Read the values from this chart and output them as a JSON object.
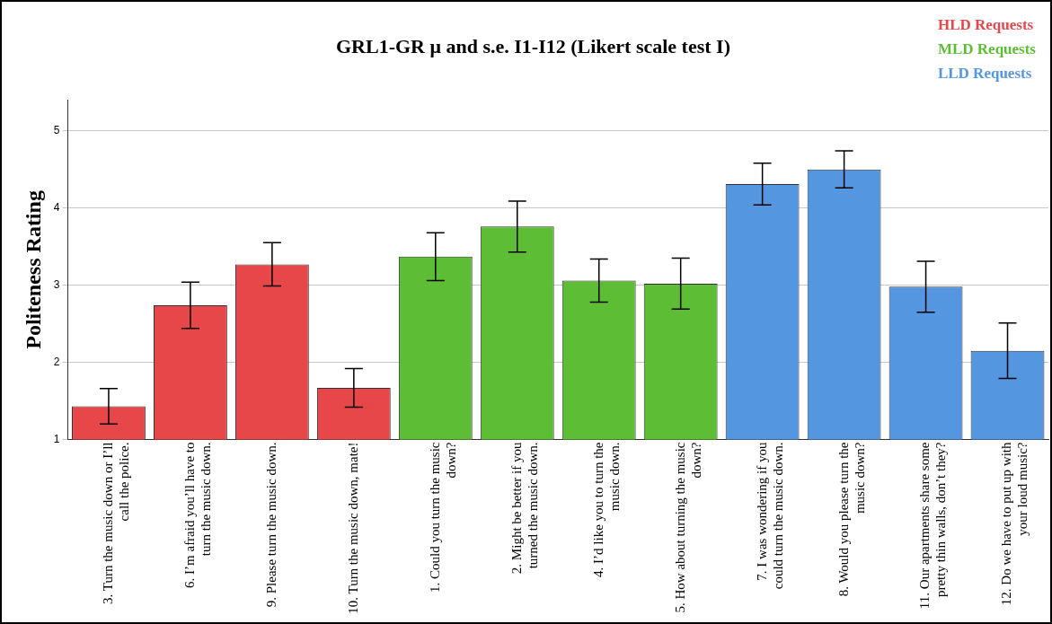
{
  "chart_data": {
    "type": "bar",
    "title": "GRL1-GR μ and s.e. I1-I12 (Likert scale test I)",
    "ylabel": "Politeness Rating",
    "categories": [
      "3. Turn the music down or I’ll call the police.",
      "6. I’m afraid you’ll have to turn the music down.",
      "9. Please turn the music down.",
      "10. Turn the music down, mate!",
      "1. Could you turn the music down?",
      "2. Might be better if you turned the music down.",
      "4. I’d like you to turn the music down.",
      "5. How about turning the music down?",
      "7. I was wondering if you could turn the music down.",
      "8. Would you please turn the music down?",
      "11. Our apartments share some pretty thin walls, don’t they?",
      "12. Do we have to put up with your loud music?"
    ],
    "series": [
      {
        "name": "HLD Requests",
        "color": "#e8474a",
        "values": [
          1.43,
          2.74,
          3.27,
          1.67,
          null,
          null,
          null,
          null,
          null,
          null,
          null,
          null
        ],
        "errors": [
          0.23,
          0.3,
          0.28,
          0.25,
          null,
          null,
          null,
          null,
          null,
          null,
          null,
          null
        ]
      },
      {
        "name": "MLD Requests",
        "color": "#5dbe36",
        "values": [
          null,
          null,
          null,
          null,
          3.37,
          3.76,
          3.06,
          3.02,
          null,
          null,
          null,
          null
        ],
        "errors": [
          null,
          null,
          null,
          null,
          0.31,
          0.33,
          0.28,
          0.33,
          null,
          null,
          null,
          null
        ]
      },
      {
        "name": "LLD Requests",
        "color": "#5596e0",
        "values": [
          null,
          null,
          null,
          null,
          null,
          null,
          null,
          null,
          4.31,
          4.5,
          2.98,
          2.15
        ],
        "errors": [
          null,
          null,
          null,
          null,
          null,
          null,
          null,
          null,
          0.27,
          0.24,
          0.33,
          0.36
        ]
      }
    ],
    "ylim": [
      1,
      5.4
    ],
    "yticks": [
      1,
      2,
      3,
      4,
      5
    ],
    "grid": "y",
    "legend": "top right"
  }
}
